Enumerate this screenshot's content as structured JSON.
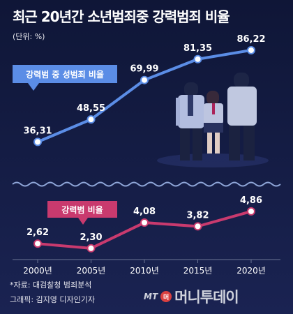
{
  "header": {
    "title": "최근 20년간 소년범죄중 강력범죄 비율",
    "unit": "(단위: %)"
  },
  "footer": {
    "source": "*자료: 대검찰청 범죄분석",
    "graphic": "그래픽: 김지영 디자인기자",
    "logo_prefix": "MT",
    "logo_mark": "머",
    "logo_name": "머니투데이"
  },
  "chart_data": {
    "type": "line",
    "categories": [
      "2000년",
      "2005년",
      "2010년",
      "2015년",
      "2020년"
    ],
    "x": [
      2000,
      2005,
      2010,
      2015,
      2020
    ],
    "panels": [
      {
        "series": [
          {
            "name": "강력범 중 성범죄 비율",
            "values": [
              36.31,
              48.55,
              69.99,
              81.35,
              86.22
            ],
            "labels": [
              "36,31",
              "48,55",
              "69,99",
              "81,35",
              "86,22"
            ],
            "color": "#5b8de6"
          }
        ]
      },
      {
        "series": [
          {
            "name": "강력범 비율",
            "values": [
              2.62,
              2.3,
              4.08,
              3.82,
              4.86
            ],
            "labels": [
              "2,62",
              "2,30",
              "4,08",
              "3,82",
              "4,86"
            ],
            "color": "#c93a6e"
          }
        ]
      }
    ],
    "axis_break": true,
    "grid": false
  }
}
